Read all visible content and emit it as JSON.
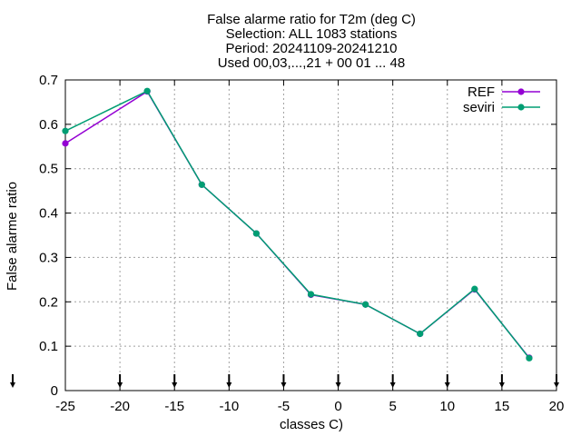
{
  "chart_data": {
    "type": "line",
    "title_lines": [
      "False alarme ratio  for T2m (deg C)",
      "Selection: ALL    1083 stations",
      "Period: 20241109-20241210",
      "Used 00,03,...,21 + 00 01 ... 48"
    ],
    "xlabel": "classes C)",
    "ylabel": "False alarme ratio",
    "xlim": [
      -25,
      20
    ],
    "ylim": [
      0,
      0.7
    ],
    "xticks": [
      -25,
      -20,
      -15,
      -10,
      -5,
      0,
      5,
      10,
      15,
      20
    ],
    "yticks": [
      0,
      0.1,
      0.2,
      0.3,
      0.4,
      0.5,
      0.6,
      0.7
    ],
    "ytick_labels": [
      "0",
      "0.1",
      "0.2",
      "0.3",
      "0.4",
      "0.5",
      "0.6",
      "0.7"
    ],
    "grid": true,
    "legend_position": "top-right",
    "class_markers_x": [
      -25,
      -20,
      -15,
      -10,
      -5,
      0,
      5,
      10,
      15,
      20
    ],
    "series": [
      {
        "name": "REF",
        "color": "#9400d3",
        "x": [
          -25,
          -17.5,
          -12.5,
          -7.5,
          -2.5,
          2.5,
          7.5,
          12.5,
          17.5
        ],
        "values": [
          0.557,
          0.674,
          0.464,
          0.354,
          0.216,
          0.194,
          0.128,
          0.228,
          0.074
        ]
      },
      {
        "name": "seviri",
        "color": "#009e73",
        "x": [
          -25,
          -17.5,
          -12.5,
          -7.5,
          -2.5,
          2.5,
          7.5,
          12.5,
          17.5
        ],
        "values": [
          0.585,
          0.675,
          0.464,
          0.354,
          0.217,
          0.194,
          0.128,
          0.229,
          0.073
        ]
      }
    ]
  }
}
